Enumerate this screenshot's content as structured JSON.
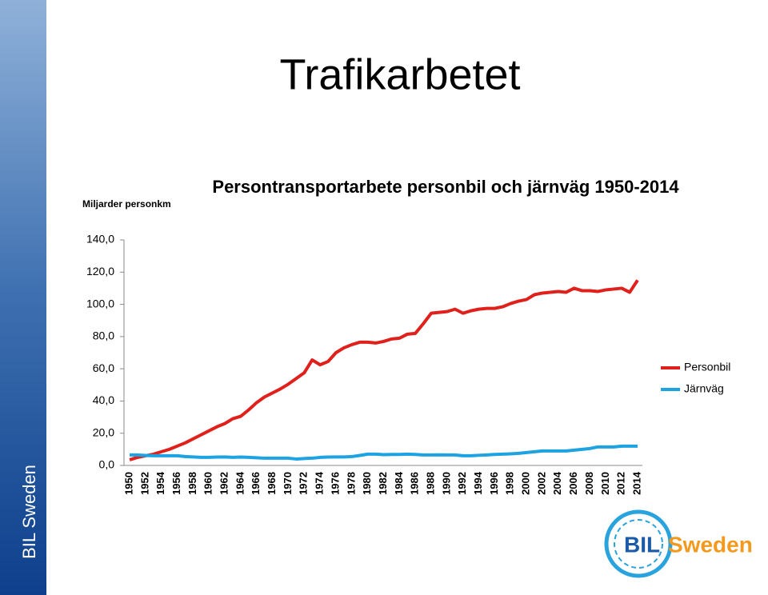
{
  "slide_title": "Trafikarbetet",
  "sidebar_text": "BIL Sweden",
  "logo": {
    "part1": "BIL",
    "part2": "Sweden"
  },
  "chart_data": {
    "type": "line",
    "title": "Persontransportarbete personbil och järnväg 1950-2014",
    "y_label": "Miljarder personkm",
    "categories": [
      "1950",
      null,
      "1952",
      null,
      "1954",
      null,
      "1956",
      null,
      "1958",
      null,
      "1960",
      null,
      "1962",
      null,
      "1964",
      null,
      "1966",
      null,
      "1968",
      null,
      "1970",
      null,
      "1972",
      null,
      "1974",
      null,
      "1976",
      null,
      "1978",
      null,
      "1980",
      null,
      "1982",
      null,
      "1984",
      null,
      "1986",
      null,
      "1988",
      null,
      "1990",
      null,
      "1992",
      null,
      "1994",
      null,
      "1996",
      null,
      "1998",
      null,
      "2000",
      null,
      "2002",
      null,
      "2004",
      null,
      "2006",
      null,
      "2008",
      null,
      "2010",
      null,
      "2012",
      null,
      "2014"
    ],
    "series": [
      {
        "name": "Personbil",
        "color": "#e0201b",
        "values": [
          3.5,
          5,
          6,
          7,
          8.5,
          10,
          12,
          14,
          16.5,
          19,
          21.5,
          24,
          26,
          29,
          30.5,
          34.5,
          39,
          42.5,
          45,
          47.5,
          50.5,
          54,
          57.5,
          65.5,
          62.5,
          64.5,
          70,
          73,
          75,
          76.5,
          76.5,
          76,
          77,
          78.5,
          79,
          81.5,
          82,
          88,
          94.5,
          95,
          95.5,
          97,
          94.5,
          96,
          97,
          97.5,
          97.5,
          98.5,
          100.5,
          102,
          103,
          106,
          107,
          107.5,
          108,
          107.5,
          110,
          108.5,
          108.5,
          108,
          109,
          109.5,
          110,
          107.5,
          115
        ]
      },
      {
        "name": "Järnväg",
        "color": "#1ea3e2",
        "values": [
          6.5,
          6.5,
          6.2,
          6,
          6,
          6,
          6,
          5.5,
          5.3,
          5,
          5,
          5.2,
          5.3,
          5,
          5.2,
          5,
          4.8,
          4.5,
          4.5,
          4.5,
          4.5,
          4,
          4.3,
          4.5,
          5,
          5.2,
          5.3,
          5.3,
          5.5,
          6.2,
          7,
          7,
          6.7,
          6.8,
          6.8,
          7,
          6.8,
          6.5,
          6.5,
          6.6,
          6.5,
          6.5,
          6,
          6,
          6.3,
          6.5,
          6.8,
          7,
          7.2,
          7.5,
          8,
          8.5,
          9,
          9,
          9,
          9,
          9.5,
          10,
          10.5,
          11.5,
          11.5,
          11.5,
          12,
          12,
          12
        ]
      }
    ],
    "ylim": [
      0,
      140
    ],
    "yticks": [
      {
        "value": 0,
        "label": "0,0"
      },
      {
        "value": 20,
        "label": "20,0"
      },
      {
        "value": 40,
        "label": "40,0"
      },
      {
        "value": 60,
        "label": "60,0"
      },
      {
        "value": 80,
        "label": "80,0"
      },
      {
        "value": 100,
        "label": "100,0"
      },
      {
        "value": 120,
        "label": "120,0"
      },
      {
        "value": 140,
        "label": "140,0"
      }
    ],
    "legend": "right"
  }
}
